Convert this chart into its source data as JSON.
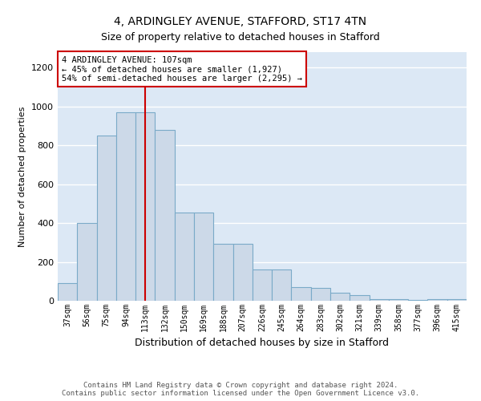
{
  "title": "4, ARDINGLEY AVENUE, STAFFORD, ST17 4TN",
  "subtitle": "Size of property relative to detached houses in Stafford",
  "xlabel": "Distribution of detached houses by size in Stafford",
  "ylabel": "Number of detached properties",
  "categories": [
    "37sqm",
    "56sqm",
    "75sqm",
    "94sqm",
    "113sqm",
    "132sqm",
    "150sqm",
    "169sqm",
    "188sqm",
    "207sqm",
    "226sqm",
    "245sqm",
    "264sqm",
    "283sqm",
    "302sqm",
    "321sqm",
    "339sqm",
    "358sqm",
    "377sqm",
    "396sqm",
    "415sqm"
  ],
  "values": [
    90,
    400,
    850,
    970,
    970,
    880,
    455,
    455,
    295,
    295,
    160,
    160,
    70,
    65,
    40,
    30,
    10,
    10,
    5,
    10,
    10
  ],
  "bar_color": "#ccd9e8",
  "bar_edge_color": "#7aaac8",
  "vline_x": 4,
  "vline_color": "#cc0000",
  "annotation_text": "4 ARDINGLEY AVENUE: 107sqm\n← 45% of detached houses are smaller (1,927)\n54% of semi-detached houses are larger (2,295) →",
  "annotation_box_facecolor": "#ffffff",
  "annotation_box_edgecolor": "#cc0000",
  "ylim": [
    0,
    1280
  ],
  "yticks": [
    0,
    200,
    400,
    600,
    800,
    1000,
    1200
  ],
  "footer_line1": "Contains HM Land Registry data © Crown copyright and database right 2024.",
  "footer_line2": "Contains public sector information licensed under the Open Government Licence v3.0.",
  "bg_color": "#ffffff",
  "plot_bg_color": "#dce8f5",
  "grid_color": "#ffffff",
  "title_fontsize": 10,
  "subtitle_fontsize": 9
}
